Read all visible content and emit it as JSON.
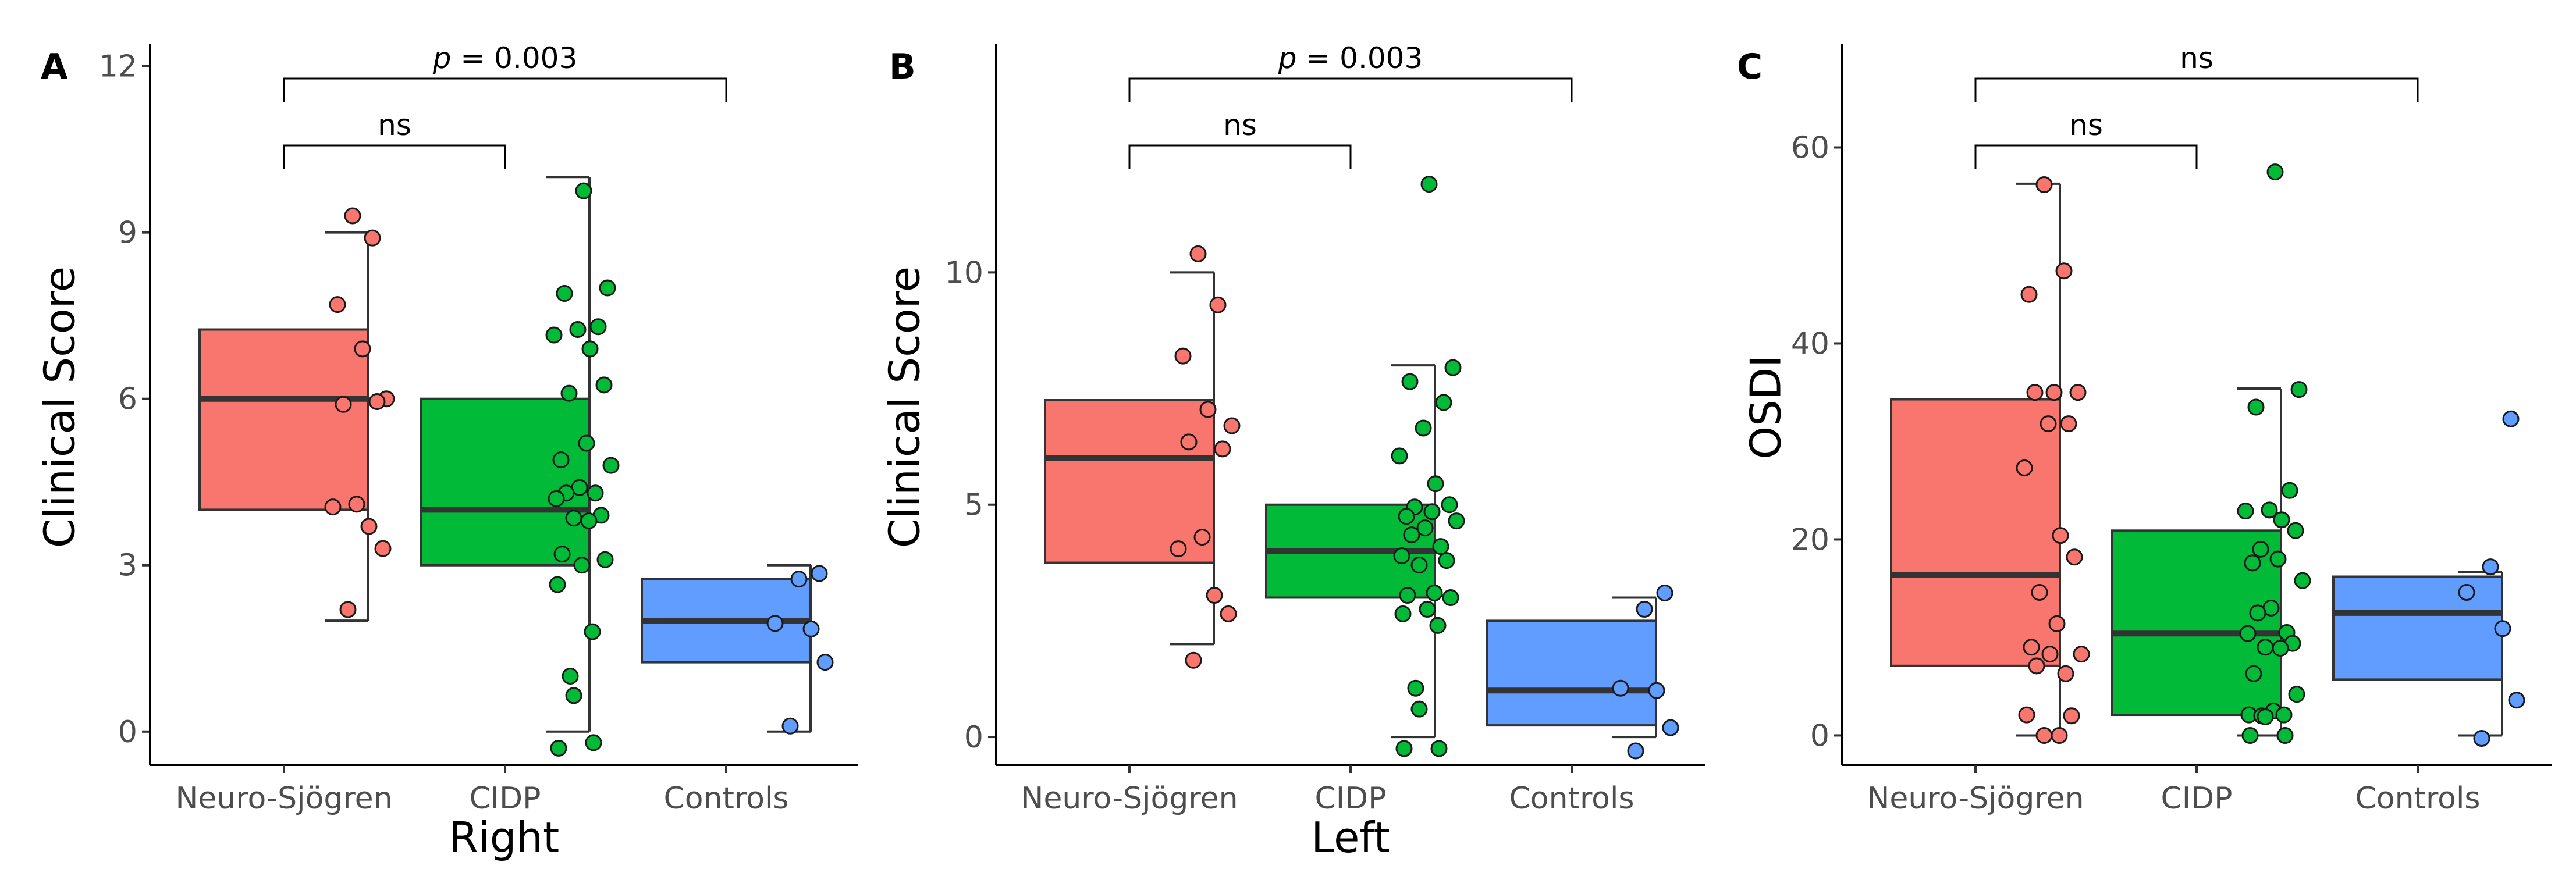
{
  "colors": {
    "neuro_sjogren": "#F8766D",
    "cidp": "#00BA38",
    "controls": "#619CFF"
  },
  "chart_data": [
    {
      "panel_label": "A",
      "type": "box",
      "title": "",
      "xlabel": "Right",
      "ylabel": "Clinical Score",
      "categories": [
        "Neuro-Sjögren",
        "CIDP",
        "Controls"
      ],
      "ylim": [
        -0.6,
        12.3
      ],
      "yticks": [
        0,
        3,
        6,
        9,
        12
      ],
      "boxes": [
        {
          "min": 2,
          "q1": 4,
          "median": 6,
          "q3": 7.25,
          "max": 9
        },
        {
          "min": 0,
          "q1": 3,
          "median": 4,
          "q3": 6,
          "max": 10
        },
        {
          "min": 0,
          "q1": 1.25,
          "median": 2,
          "q3": 2.75,
          "max": 3
        }
      ],
      "points": [
        [
          9.3,
          8.9,
          7.7,
          6.9,
          6.0,
          5.9,
          5.95,
          4.1,
          4.05,
          3.7,
          3.3,
          2.2
        ],
        [
          9.75,
          8.0,
          7.9,
          7.3,
          7.25,
          7.15,
          6.9,
          6.25,
          6.1,
          5.2,
          4.9,
          4.8,
          4.4,
          4.3,
          4.3,
          4.2,
          3.9,
          3.85,
          3.8,
          3.2,
          3.1,
          3.0,
          2.65,
          1.8,
          1.0,
          0.65,
          -0.2,
          -0.3
        ],
        [
          2.85,
          2.75,
          1.95,
          1.85,
          1.25,
          0.1
        ]
      ],
      "comparisons": [
        {
          "from": "Neuro-Sjögren",
          "to": "Controls",
          "label_prefix": "p",
          "label_value": " = 0.003"
        },
        {
          "from": "Neuro-Sjögren",
          "to": "CIDP",
          "label_prefix": "",
          "label_value": "ns"
        }
      ]
    },
    {
      "panel_label": "B",
      "type": "box",
      "title": "",
      "xlabel": "Left",
      "ylabel": "Clinical Score",
      "categories": [
        "Neuro-Sjögren",
        "CIDP",
        "Controls"
      ],
      "ylim": [
        -0.6,
        14.8
      ],
      "yticks": [
        0,
        5,
        10
      ],
      "boxes": [
        {
          "min": 2,
          "q1": 3.75,
          "median": 6,
          "q3": 7.25,
          "max": 10
        },
        {
          "min": 0,
          "q1": 3,
          "median": 4,
          "q3": 5,
          "max": 8
        },
        {
          "min": 0,
          "q1": 0.25,
          "median": 1,
          "q3": 2.5,
          "max": 3
        }
      ],
      "points": [
        [
          10.4,
          9.3,
          8.2,
          7.05,
          6.7,
          6.35,
          6.2,
          4.3,
          4.05,
          3.05,
          2.65,
          1.65
        ],
        [
          11.9,
          7.95,
          7.65,
          7.2,
          6.65,
          6.05,
          5.45,
          5.0,
          4.95,
          4.85,
          4.75,
          4.65,
          4.5,
          4.35,
          4.1,
          3.9,
          3.8,
          3.7,
          3.1,
          3.05,
          3.0,
          2.75,
          2.65,
          2.4,
          1.05,
          0.6,
          -0.25,
          -0.25
        ],
        [
          3.1,
          2.75,
          1.05,
          1.0,
          0.2,
          -0.3
        ]
      ],
      "comparisons": [
        {
          "from": "Neuro-Sjögren",
          "to": "Controls",
          "label_prefix": "p",
          "label_value": " = 0.003"
        },
        {
          "from": "Neuro-Sjögren",
          "to": "CIDP",
          "label_prefix": "",
          "label_value": "ns"
        }
      ]
    },
    {
      "panel_label": "C",
      "type": "box",
      "title": "",
      "xlabel": "",
      "ylabel": "OSDI",
      "categories": [
        "Neuro-Sjögren",
        "CIDP",
        "Controls"
      ],
      "ylim": [
        -3,
        70
      ],
      "yticks": [
        0,
        20,
        40,
        60
      ],
      "boxes": [
        {
          "min": 0,
          "q1": 7.1,
          "median": 16.4,
          "q3": 34.3,
          "max": 56.3
        },
        {
          "min": 0,
          "q1": 2.1,
          "median": 10.4,
          "q3": 20.9,
          "max": 35.4
        },
        {
          "min": 0,
          "q1": 5.7,
          "median": 12.5,
          "q3": 16.2,
          "max": 16.7
        }
      ],
      "points": [
        [
          56.2,
          47.4,
          45.0,
          35.0,
          35.0,
          35.0,
          31.8,
          31.8,
          27.3,
          20.4,
          18.2,
          14.6,
          11.4,
          9.0,
          8.3,
          8.3,
          7.1,
          6.3,
          2.1,
          2.0,
          0.0,
          0.0
        ],
        [
          57.5,
          35.3,
          33.5,
          25.0,
          23.0,
          22.9,
          22.0,
          20.9,
          19.0,
          18.0,
          17.6,
          15.8,
          13.0,
          12.5,
          10.5,
          10.4,
          9.4,
          9.0,
          8.9,
          6.3,
          4.2,
          2.5,
          2.1,
          2.1,
          2.0,
          1.9,
          0.0,
          0.0
        ],
        [
          32.3,
          17.2,
          14.6,
          10.9,
          3.6,
          -0.3
        ]
      ],
      "comparisons": [
        {
          "from": "Neuro-Sjögren",
          "to": "Controls",
          "label_prefix": "",
          "label_value": "ns"
        },
        {
          "from": "Neuro-Sjögren",
          "to": "CIDP",
          "label_prefix": "",
          "label_value": "ns"
        }
      ]
    }
  ]
}
